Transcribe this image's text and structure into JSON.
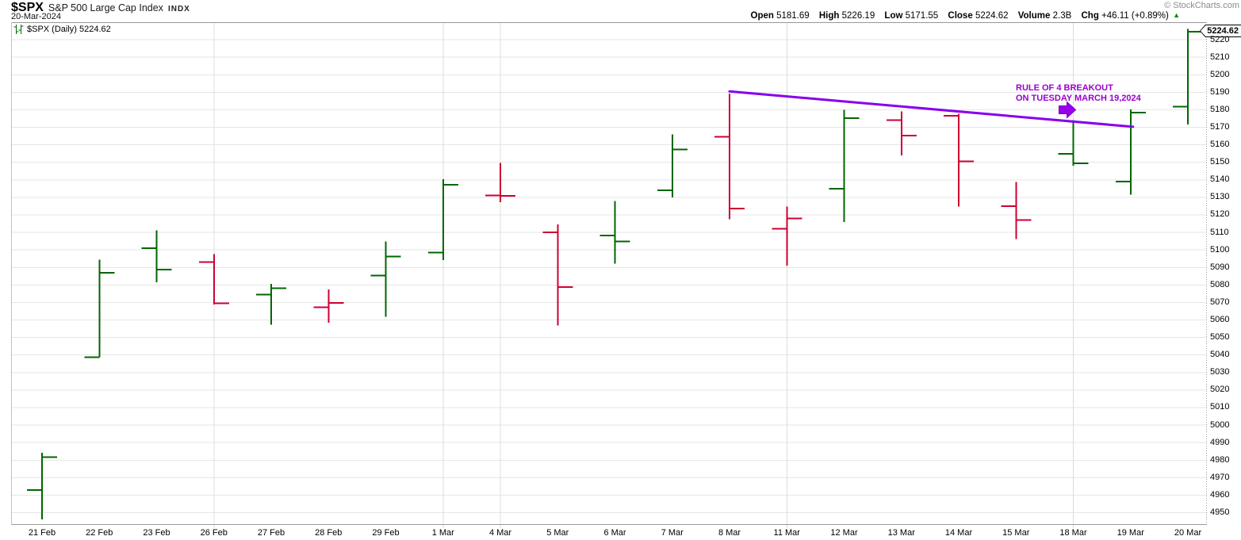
{
  "header": {
    "symbol": "$SPX",
    "name": "S&P 500 Large Cap Index",
    "exchange": "INDX",
    "date": "20-Mar-2024",
    "copyright": "© StockCharts.com",
    "quote": {
      "items": [
        {
          "label": "Open",
          "value": "5181.69"
        },
        {
          "label": "High",
          "value": "5226.19"
        },
        {
          "label": "Low",
          "value": "5171.55"
        },
        {
          "label": "Close",
          "value": "5224.62"
        },
        {
          "label": "Volume",
          "value": "2.3B"
        },
        {
          "label": "Chg",
          "value": "+46.11 (+0.89%)"
        }
      ],
      "arrow": "▲"
    }
  },
  "legend": {
    "label": "$SPX (Daily) 5224.62"
  },
  "annotation": {
    "line1": "RULE OF 4 BREAKOUT",
    "line2": "ON TUESDAY MARCH 19,2024"
  },
  "price_tag": "5224.62",
  "colors": {
    "up": "#006600",
    "down": "#cc0033",
    "trendline": "#8800ee",
    "arrow_fill": "#9900ee",
    "arrow_stroke": "#7700bb",
    "annotation": "#9900cc",
    "grid_h": "#e6e6e6",
    "grid_v": "#dcdcdc",
    "border": "#999999",
    "chg_arrow": "#008800"
  },
  "chart_data": {
    "type": "ohlc-bar",
    "title": "$SPX (Daily)",
    "timeframe": "Daily",
    "last_price": 5224.62,
    "grid": "on",
    "ylim": [
      4943,
      5230
    ],
    "y_ticks": [
      5220,
      5210,
      5200,
      5190,
      5180,
      5170,
      5160,
      5150,
      5140,
      5130,
      5120,
      5110,
      5100,
      5090,
      5080,
      5070,
      5060,
      5050,
      5040,
      5030,
      5020,
      5010,
      5000,
      4990,
      4980,
      4970,
      4960,
      4950
    ],
    "x": [
      "21 Feb",
      "22 Feb",
      "23 Feb",
      "26 Feb",
      "27 Feb",
      "28 Feb",
      "29 Feb",
      "1 Mar",
      "4 Mar",
      "5 Mar",
      "6 Mar",
      "7 Mar",
      "8 Mar",
      "11 Mar",
      "12 Mar",
      "13 Mar",
      "14 Mar",
      "15 Mar",
      "18 Mar",
      "19 Mar",
      "20 Mar"
    ],
    "vertical_gridline_dates": [
      "26 Feb",
      "1 Mar",
      "4 Mar",
      "11 Mar",
      "18 Mar"
    ],
    "bars": [
      {
        "date": "21 Feb",
        "open": 4963.0,
        "high": 4984.2,
        "low": 4946.1,
        "close": 4981.8,
        "dir": "up"
      },
      {
        "date": "22 Feb",
        "open": 5038.8,
        "high": 5094.4,
        "low": 5038.8,
        "close": 5087.0,
        "dir": "up"
      },
      {
        "date": "23 Feb",
        "open": 5100.9,
        "high": 5111.1,
        "low": 5081.5,
        "close": 5088.8,
        "dir": "up"
      },
      {
        "date": "26 Feb",
        "open": 5093.0,
        "high": 5097.7,
        "low": 5068.9,
        "close": 5069.5,
        "dir": "down"
      },
      {
        "date": "27 Feb",
        "open": 5074.6,
        "high": 5080.7,
        "low": 5057.3,
        "close": 5078.2,
        "dir": "up"
      },
      {
        "date": "28 Feb",
        "open": 5067.2,
        "high": 5077.4,
        "low": 5058.4,
        "close": 5069.8,
        "dir": "down"
      },
      {
        "date": "29 Feb",
        "open": 5085.4,
        "high": 5104.9,
        "low": 5061.9,
        "close": 5096.3,
        "dir": "up"
      },
      {
        "date": "1 Mar",
        "open": 5098.5,
        "high": 5140.3,
        "low": 5094.2,
        "close": 5137.1,
        "dir": "up"
      },
      {
        "date": "4 Mar",
        "open": 5131.0,
        "high": 5149.7,
        "low": 5127.2,
        "close": 5130.9,
        "dir": "down"
      },
      {
        "date": "5 Mar",
        "open": 5110.0,
        "high": 5114.5,
        "low": 5056.8,
        "close": 5078.7,
        "dir": "down"
      },
      {
        "date": "6 Mar",
        "open": 5108.3,
        "high": 5127.9,
        "low": 5092.2,
        "close": 5104.8,
        "dir": "up"
      },
      {
        "date": "7 Mar",
        "open": 5134.0,
        "high": 5166.0,
        "low": 5130.0,
        "close": 5157.4,
        "dir": "up"
      },
      {
        "date": "8 Mar",
        "open": 5164.5,
        "high": 5189.3,
        "low": 5117.5,
        "close": 5123.7,
        "dir": "down"
      },
      {
        "date": "11 Mar",
        "open": 5112.0,
        "high": 5124.7,
        "low": 5091.1,
        "close": 5117.9,
        "dir": "down"
      },
      {
        "date": "12 Mar",
        "open": 5135.0,
        "high": 5180.0,
        "low": 5116.0,
        "close": 5175.3,
        "dir": "up"
      },
      {
        "date": "13 Mar",
        "open": 5174.0,
        "high": 5179.0,
        "low": 5154.0,
        "close": 5165.3,
        "dir": "down"
      },
      {
        "date": "14 Mar",
        "open": 5176.5,
        "high": 5177.7,
        "low": 5124.8,
        "close": 5150.5,
        "dir": "down"
      },
      {
        "date": "15 Mar",
        "open": 5125.0,
        "high": 5138.8,
        "low": 5106.3,
        "close": 5117.1,
        "dir": "down"
      },
      {
        "date": "18 Mar",
        "open": 5154.8,
        "high": 5174.0,
        "low": 5148.0,
        "close": 5149.4,
        "dir": "up"
      },
      {
        "date": "19 Mar",
        "open": 5139.1,
        "high": 5180.3,
        "low": 5131.6,
        "close": 5178.5,
        "dir": "up"
      },
      {
        "date": "20 Mar",
        "open": 5181.7,
        "high": 5226.2,
        "low": 5171.6,
        "close": 5224.6,
        "dir": "up"
      }
    ],
    "trendline": {
      "start_date": "8 Mar",
      "start_price": 5190.5,
      "end_date": "19 Mar",
      "end_price": 5170.3
    },
    "arrow_marker": {
      "date": "18 Mar",
      "price": 5180
    }
  }
}
